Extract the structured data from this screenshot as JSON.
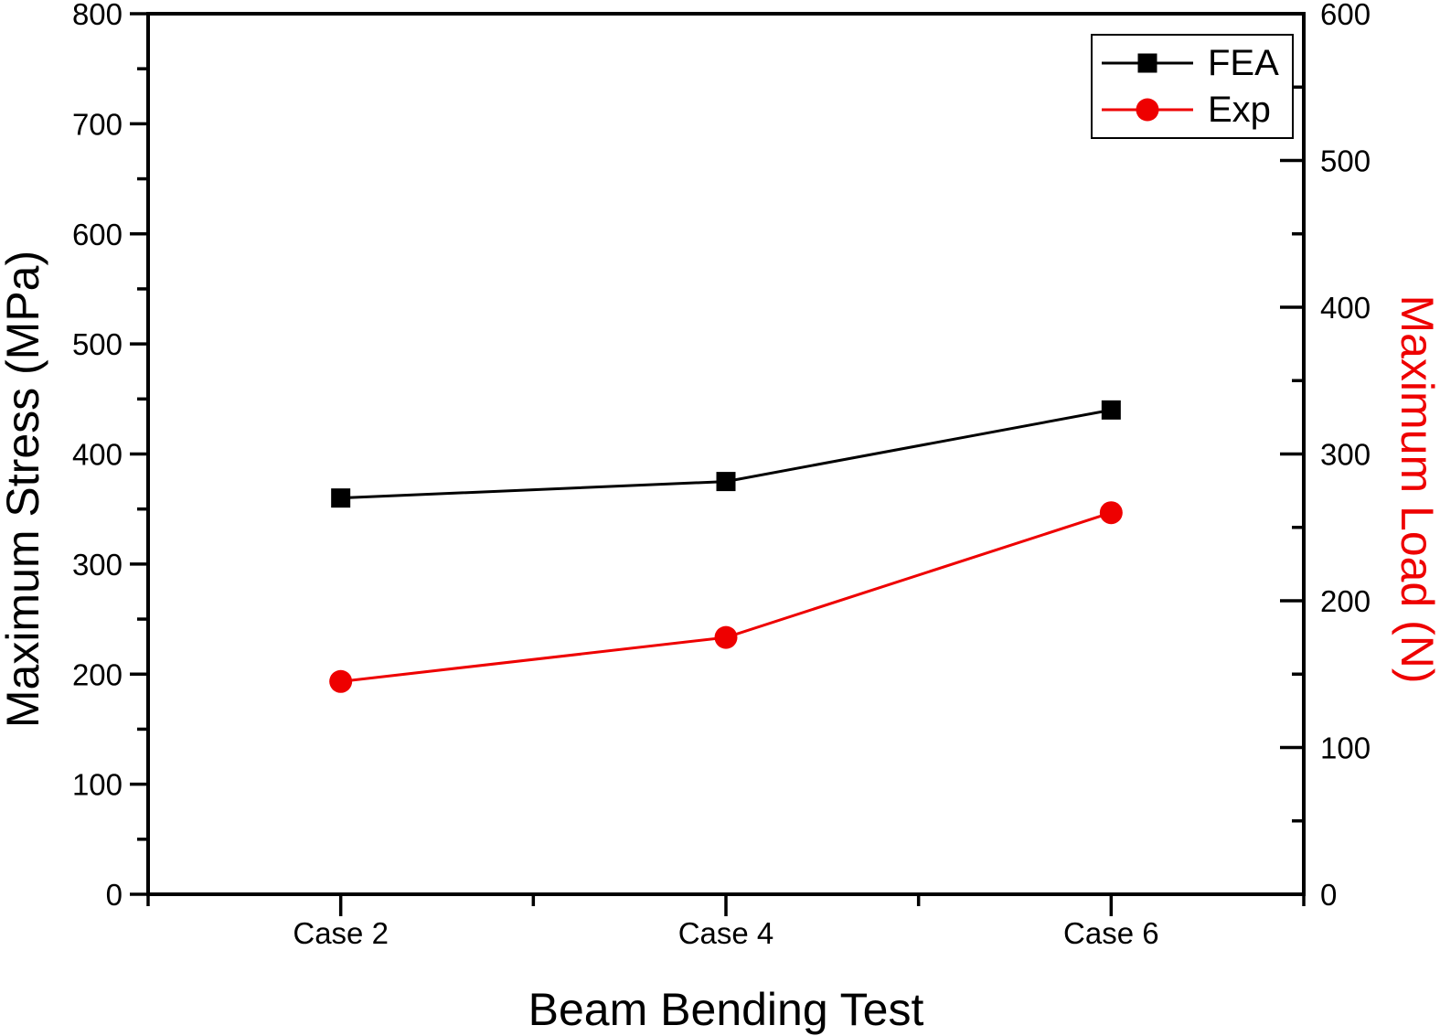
{
  "chart_data": {
    "type": "line",
    "title": "",
    "categories": [
      "Case 2",
      "Case 4",
      "Case 6"
    ],
    "xlabel": "Beam Bending Test",
    "left_axis": {
      "label": "Maximum Stress (MPa)",
      "min": 0,
      "max": 800,
      "major_step": 100,
      "minor_step": 50,
      "tick_labels": [
        "0",
        "100",
        "200",
        "300",
        "400",
        "500",
        "600",
        "700",
        "800"
      ],
      "label_color": "#000000",
      "tick_label_color": "#000000"
    },
    "right_axis": {
      "label": "Maximum Load (N)",
      "min": 0,
      "max": 600,
      "major_step": 100,
      "minor_step": 50,
      "tick_labels": [
        "0",
        "100",
        "200",
        "300",
        "400",
        "500",
        "600"
      ],
      "label_color": "#ee0000",
      "tick_label_color": "#000000"
    },
    "series": [
      {
        "name": "FEA",
        "axis": "left",
        "values": [
          360,
          375,
          440
        ],
        "color": "#000000",
        "marker": "square"
      },
      {
        "name": "Exp",
        "axis": "right",
        "values": [
          145,
          175,
          260
        ],
        "color": "#ee0000",
        "marker": "circle"
      }
    ],
    "legend": {
      "position": "top-right",
      "items": [
        "FEA",
        "Exp"
      ]
    },
    "grid": false
  },
  "colors": {
    "background": "#ffffff",
    "axis": "#000000",
    "accent_red": "#ee0000"
  }
}
